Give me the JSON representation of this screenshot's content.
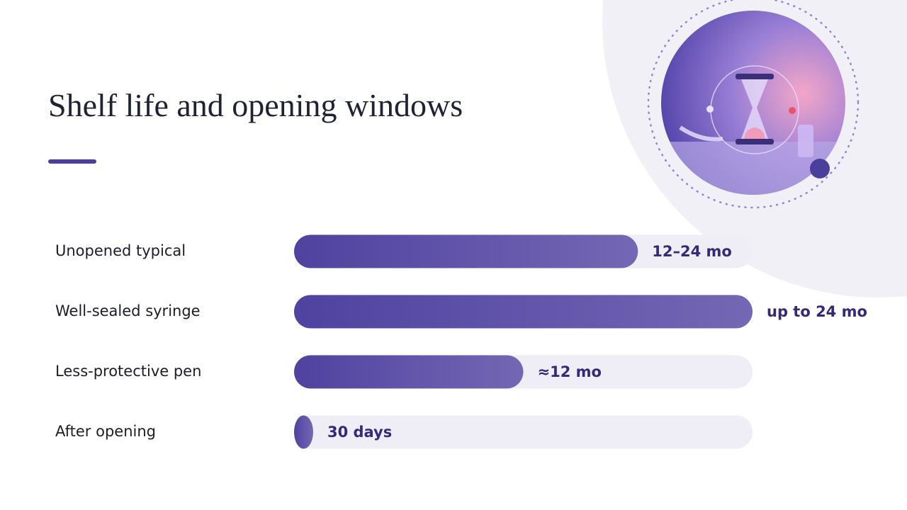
{
  "chart_data": {
    "type": "bar",
    "orientation": "horizontal",
    "title": "Shelf life and opening windows",
    "categories": [
      "Unopened typical",
      "Well-sealed syringe",
      "Less-protective pen",
      "After opening"
    ],
    "values": [
      18,
      24,
      12,
      1
    ],
    "value_labels": [
      "12–24 mo",
      "up to 24 mo",
      "≈12 mo",
      "30 days"
    ],
    "color": "#4f42a0",
    "xlim": [
      0,
      24
    ]
  }
}
